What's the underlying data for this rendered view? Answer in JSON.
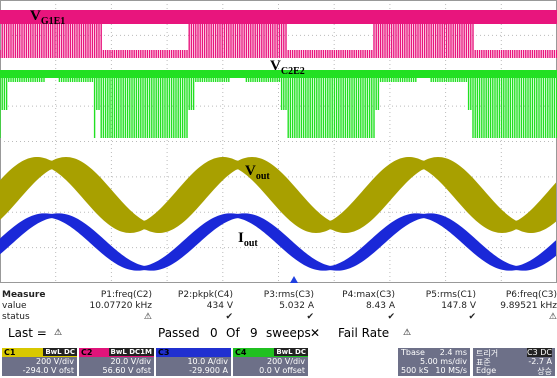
{
  "traces": [
    {
      "label": "V",
      "sub": "G1E1"
    },
    {
      "label": "V",
      "sub": "C2E2"
    },
    {
      "label": "V",
      "sub": "out"
    },
    {
      "label": "I",
      "sub": "out"
    }
  ],
  "measure": {
    "header": "Measure",
    "value_label": "value",
    "status_label": "status",
    "columns": [
      {
        "name": "P1:freq(C2)",
        "value": "10.07720 kHz",
        "status": "⚠"
      },
      {
        "name": "P2:pkpk(C4)",
        "value": "434 V",
        "status": "✔"
      },
      {
        "name": "P3:rms(C3)",
        "value": "5.032 A",
        "status": "✔"
      },
      {
        "name": "P4:max(C3)",
        "value": "8.43 A",
        "status": "✔"
      },
      {
        "name": "P5:rms(C1)",
        "value": "147.8 V",
        "status": "✔"
      },
      {
        "name": "P6:freq(C3)",
        "value": "9.89521 kHz",
        "status": "⚠"
      }
    ]
  },
  "pass": {
    "last": "Last =",
    "last_icon": "⚠",
    "passed": "Passed",
    "count": "0",
    "of": "Of",
    "total": "9",
    "sweeps": "sweeps",
    "x": "✕",
    "fail_rate": "Fail Rate",
    "fail_icon": "⚠"
  },
  "channels": [
    {
      "name": "C1",
      "badges": "BwL DC",
      "div": "200 V/div",
      "offset": "-294.0 V ofst"
    },
    {
      "name": "C2",
      "badges": "BwL DC1M",
      "div": "20.0 V/div",
      "offset": "56.60 V ofst"
    },
    {
      "name": "C3",
      "badges": "",
      "div": "10.0 A/div",
      "offset": "-29.900 A"
    },
    {
      "name": "C4",
      "badges": "BwL DC",
      "div": "200 V/div",
      "offset": "0.0 V offset"
    }
  ],
  "timebase": {
    "label": "Tbase",
    "value": "2.4 ms",
    "div": "5.00 ms/div",
    "samples": "500 kS",
    "rate": "10 MS/s"
  },
  "trigger": {
    "label": "트리거",
    "source": "C3 DC",
    "mode": "표준",
    "level": "-2.7 A",
    "type": "Edge",
    "slope": "상승"
  }
}
